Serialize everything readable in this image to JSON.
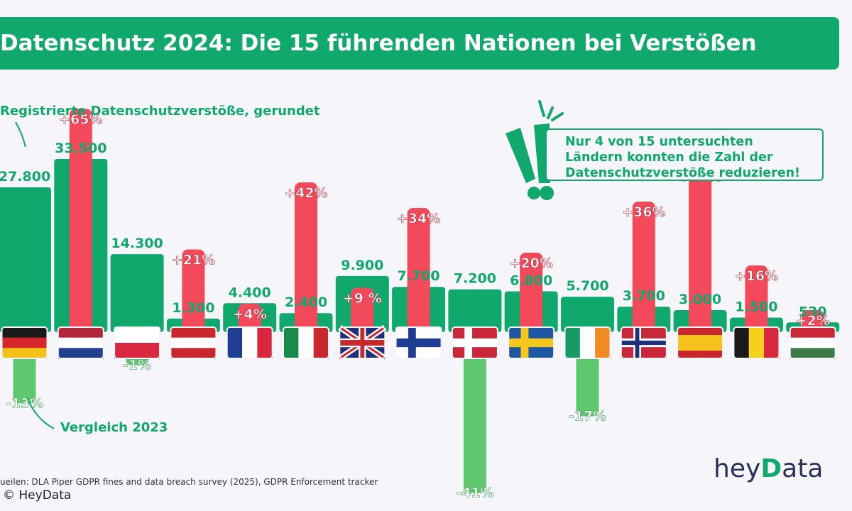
{
  "header": {
    "title": "Datenschutz 2024: Die 15 führenden Nationen bei Verstößen"
  },
  "legend": {
    "bars_label": "Registrierte Datenschutzverstöße, gerundet",
    "change_label": "Vergleich 2023"
  },
  "callout": {
    "lines": [
      "Nur 4 von 15 untersuchten",
      "Ländern konnten die Zahl der",
      "Datenschutzverstöße reduzieren!"
    ],
    "icon": "exclamation-icon"
  },
  "footer": {
    "source": "ueilen: DLA Piper GDPR  fines and data breach survey (2025), GDPR Enforcement tracker",
    "copyright": "© HeyData",
    "logo": "heyData"
  },
  "colors": {
    "accent": "#10a86c",
    "increase": "#f2495b",
    "decrease": "#5fc86e",
    "background": "#f5f5fa"
  },
  "chart_data": {
    "type": "bar",
    "title": "Datenschutz 2024: Die 15 führenden Nationen bei Verstößen",
    "ylabel": "Registrierte Datenschutzverstöße, gerundet",
    "countries": [
      {
        "flag": "germany-flag",
        "value": 27800,
        "value_label": "27.800",
        "change": -13,
        "change_label": "-13%"
      },
      {
        "flag": "netherlands-flag",
        "value": 33500,
        "value_label": "33.500",
        "change": 65,
        "change_label": "+65%"
      },
      {
        "flag": "poland-flag",
        "value": 14300,
        "value_label": "14.300",
        "change": -1,
        "change_label": "-1%"
      },
      {
        "flag": "austria-flag",
        "value": 1300,
        "value_label": "1.300",
        "change": 21,
        "change_label": "+21%"
      },
      {
        "flag": "france-flag",
        "value": 4400,
        "value_label": "4.400",
        "change": 4,
        "change_label": "+4%"
      },
      {
        "flag": "italy-flag",
        "value": 2400,
        "value_label": "2.400",
        "change": 42,
        "change_label": "+42%"
      },
      {
        "flag": "uk-flag",
        "value": 9900,
        "value_label": "9.900",
        "change": 9,
        "change_label": "+9 %"
      },
      {
        "flag": "finland-flag",
        "value": 7700,
        "value_label": "7.700",
        "change": 34,
        "change_label": "+34%"
      },
      {
        "flag": "denmark-flag",
        "value": 7200,
        "value_label": "7.200",
        "change": -41,
        "change_label": "-41%"
      },
      {
        "flag": "sweden-flag",
        "value": 6800,
        "value_label": "6.800",
        "change": 20,
        "change_label": "+20%"
      },
      {
        "flag": "ireland-flag",
        "value": 5700,
        "value_label": "5.700",
        "change": -17,
        "change_label": "-17%"
      },
      {
        "flag": "norway-flag",
        "value": 3700,
        "value_label": "3.700",
        "change": 36,
        "change_label": "+36%"
      },
      {
        "flag": "spain-flag",
        "value": 3000,
        "value_label": "3.000",
        "change": 47,
        "change_label": "+47%"
      },
      {
        "flag": "belgium-flag",
        "value": 1500,
        "value_label": "1.500",
        "change": 16,
        "change_label": "+16%"
      },
      {
        "flag": "hungary-flag",
        "value": 530,
        "value_label": "530",
        "change": 2,
        "change_label": "+2%"
      }
    ]
  }
}
